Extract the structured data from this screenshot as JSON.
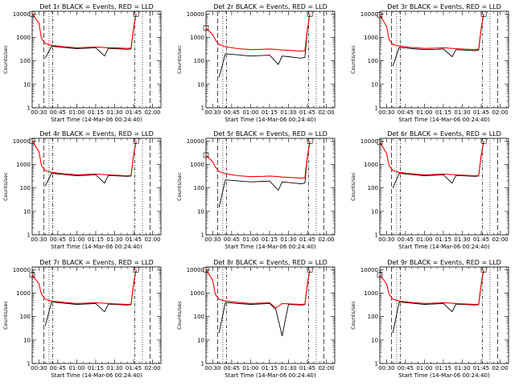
{
  "colors": {
    "events": "#000000",
    "lld": "#ff0000",
    "background": "#ffffff",
    "axes": "#000000"
  },
  "common": {
    "ylabel": "Counts/sec",
    "xlabel": "Start Time (14-Mar-06 00:24:40)",
    "ytick_labels": [
      "1",
      "10",
      "100",
      "1000",
      "10000"
    ],
    "xtick_labels": [
      "00:30",
      "00:45",
      "01:00",
      "01:15",
      "01:30",
      "01:45",
      "02:00"
    ]
  },
  "chart_data": [
    {
      "type": "line",
      "title": "Det 1r BLACK = Events, RED = LLD",
      "yscale": "log",
      "ylim": [
        1,
        13000
      ],
      "x": [
        "00:24:40",
        "00:30",
        "00:32",
        "00:35",
        "00:40",
        "00:50",
        "01:00",
        "01:10",
        "01:15",
        "01:22",
        "01:25",
        "01:30",
        "01:35",
        "01:40",
        "01:43",
        "01:45",
        "01:47"
      ],
      "series": [
        {
          "values": [
            10000,
            4000,
            900,
            550,
            460,
            400,
            360,
            380,
            390,
            370,
            360,
            360,
            350,
            340,
            350,
            2500,
            10000
          ]
        },
        {
          "values": [
            null,
            null,
            null,
            130,
            420,
            370,
            330,
            350,
            360,
            160,
            340,
            330,
            320,
            310,
            320,
            2400,
            10000
          ]
        }
      ],
      "vlines": [
        "00:34",
        "00:38",
        "00:41",
        "01:46",
        "01:52",
        "01:58"
      ]
    },
    {
      "type": "line",
      "title": "Det 2r BLACK = Events, RED = LLD",
      "yscale": "log",
      "ylim": [
        1,
        13000
      ],
      "x": [
        "00:24:40",
        "00:30",
        "00:32",
        "00:35",
        "00:40",
        "00:50",
        "01:00",
        "01:10",
        "01:15",
        "01:22",
        "01:25",
        "01:30",
        "01:35",
        "01:40",
        "01:43",
        "01:45",
        "01:47"
      ],
      "series": [
        {
          "values": [
            2500,
            1300,
            800,
            500,
            400,
            330,
            300,
            310,
            320,
            300,
            290,
            280,
            270,
            260,
            270,
            2200,
            10000
          ]
        },
        {
          "values": [
            null,
            null,
            null,
            20,
            200,
            180,
            160,
            170,
            175,
            70,
            160,
            150,
            140,
            130,
            140,
            2000,
            10000
          ]
        }
      ],
      "vlines": [
        "00:34",
        "00:38",
        "00:41",
        "01:46",
        "01:52",
        "01:58"
      ]
    },
    {
      "type": "line",
      "title": "Det 3r BLACK = Events, RED = LLD",
      "yscale": "log",
      "ylim": [
        1,
        13000
      ],
      "x": [
        "00:24:40",
        "00:30",
        "00:32",
        "00:35",
        "00:40",
        "00:50",
        "01:00",
        "01:10",
        "01:15",
        "01:22",
        "01:25",
        "01:30",
        "01:35",
        "01:40",
        "01:43",
        "01:45",
        "01:47"
      ],
      "series": [
        {
          "values": [
            9000,
            3000,
            800,
            500,
            430,
            370,
            340,
            350,
            360,
            340,
            330,
            320,
            310,
            300,
            320,
            2500,
            10000
          ]
        },
        {
          "values": [
            null,
            null,
            null,
            60,
            380,
            330,
            300,
            310,
            320,
            150,
            300,
            290,
            280,
            270,
            290,
            2400,
            10000
          ]
        }
      ],
      "vlines": [
        "00:34",
        "00:38",
        "00:41",
        "01:46",
        "01:52",
        "01:58"
      ]
    },
    {
      "type": "line",
      "title": "Det 4r BLACK = Events, RED = LLD",
      "yscale": "log",
      "ylim": [
        1,
        13000
      ],
      "x": [
        "00:24:40",
        "00:30",
        "00:32",
        "00:35",
        "00:40",
        "00:50",
        "01:00",
        "01:10",
        "01:15",
        "01:22",
        "01:25",
        "01:30",
        "01:35",
        "01:40",
        "01:43",
        "01:45",
        "01:47"
      ],
      "series": [
        {
          "values": [
            10000,
            3500,
            900,
            550,
            460,
            400,
            360,
            380,
            390,
            370,
            360,
            350,
            340,
            330,
            340,
            2500,
            10000
          ]
        },
        {
          "values": [
            null,
            null,
            null,
            120,
            420,
            370,
            330,
            350,
            360,
            160,
            340,
            330,
            320,
            310,
            320,
            2400,
            10000
          ]
        }
      ],
      "vlines": [
        "00:34",
        "00:38",
        "00:41",
        "01:46",
        "01:52",
        "01:58"
      ]
    },
    {
      "type": "line",
      "title": "Det 5r BLACK = Events, RED = LLD",
      "yscale": "log",
      "ylim": [
        1,
        13000
      ],
      "x": [
        "00:24:40",
        "00:30",
        "00:32",
        "00:35",
        "00:40",
        "00:50",
        "01:00",
        "01:10",
        "01:15",
        "01:22",
        "01:25",
        "01:30",
        "01:35",
        "01:40",
        "01:43",
        "01:45",
        "01:47"
      ],
      "series": [
        {
          "values": [
            2500,
            1300,
            800,
            500,
            400,
            330,
            300,
            310,
            320,
            300,
            290,
            280,
            270,
            260,
            270,
            2200,
            10000
          ]
        },
        {
          "values": [
            null,
            null,
            null,
            15,
            220,
            200,
            180,
            190,
            195,
            80,
            180,
            170,
            160,
            150,
            160,
            2000,
            10000
          ]
        }
      ],
      "vlines": [
        "00:34",
        "00:38",
        "00:41",
        "01:46",
        "01:52",
        "01:58"
      ]
    },
    {
      "type": "line",
      "title": "Det 6r BLACK = Events, RED = LLD",
      "yscale": "log",
      "ylim": [
        1,
        13000
      ],
      "x": [
        "00:24:40",
        "00:30",
        "00:32",
        "00:35",
        "00:40",
        "00:50",
        "01:00",
        "01:10",
        "01:15",
        "01:22",
        "01:25",
        "01:30",
        "01:35",
        "01:40",
        "01:43",
        "01:45",
        "01:47"
      ],
      "series": [
        {
          "values": [
            9000,
            3000,
            900,
            550,
            460,
            400,
            360,
            380,
            390,
            370,
            360,
            350,
            340,
            330,
            340,
            2500,
            10000
          ]
        },
        {
          "values": [
            null,
            null,
            null,
            100,
            420,
            370,
            330,
            350,
            360,
            160,
            340,
            330,
            320,
            310,
            320,
            2400,
            10000
          ]
        }
      ],
      "vlines": [
        "00:34",
        "00:38",
        "00:41",
        "01:46",
        "01:52",
        "01:58"
      ]
    },
    {
      "type": "line",
      "title": "Det 7r BLACK = Events, RED = LLD",
      "yscale": "log",
      "ylim": [
        1,
        13000
      ],
      "x": [
        "00:24:40",
        "00:30",
        "00:32",
        "00:35",
        "00:40",
        "00:50",
        "01:00",
        "01:10",
        "01:15",
        "01:22",
        "01:25",
        "01:30",
        "01:35",
        "01:40",
        "01:43",
        "01:45",
        "01:47"
      ],
      "series": [
        {
          "values": [
            6000,
            2500,
            900,
            550,
            460,
            400,
            360,
            380,
            390,
            370,
            360,
            350,
            340,
            330,
            340,
            2500,
            10000
          ]
        },
        {
          "values": [
            null,
            null,
            null,
            40,
            420,
            370,
            330,
            350,
            360,
            160,
            340,
            330,
            320,
            310,
            320,
            2400,
            10000
          ]
        }
      ],
      "vlines": [
        "00:34",
        "00:38",
        "00:41",
        "01:46",
        "01:52",
        "01:58"
      ]
    },
    {
      "type": "line",
      "title": "Det 8r BLACK = Events, RED = LLD",
      "yscale": "log",
      "ylim": [
        1,
        13000
      ],
      "x": [
        "00:24:40",
        "00:30",
        "00:32",
        "00:35",
        "00:40",
        "00:50",
        "01:00",
        "01:10",
        "01:15",
        "01:20",
        "01:25",
        "01:30",
        "01:35",
        "01:40",
        "01:43",
        "01:45",
        "01:47"
      ],
      "series": [
        {
          "values": [
            10000,
            3500,
            900,
            550,
            460,
            400,
            360,
            380,
            390,
            230,
            360,
            350,
            340,
            330,
            340,
            2500,
            10000
          ]
        },
        {
          "values": [
            null,
            null,
            null,
            20,
            400,
            360,
            330,
            350,
            360,
            200,
            15,
            330,
            320,
            310,
            320,
            2400,
            10000
          ]
        }
      ],
      "vlines": [
        "00:34",
        "00:38",
        "00:41",
        "01:46",
        "01:52",
        "01:58"
      ]
    },
    {
      "type": "line",
      "title": "Det 9r BLACK = Events, RED = LLD",
      "yscale": "log",
      "ylim": [
        1,
        13000
      ],
      "x": [
        "00:24:40",
        "00:30",
        "00:32",
        "00:35",
        "00:40",
        "00:50",
        "01:00",
        "01:10",
        "01:15",
        "01:22",
        "01:25",
        "01:30",
        "01:35",
        "01:40",
        "01:43",
        "01:45",
        "01:47"
      ],
      "series": [
        {
          "values": [
            6000,
            2500,
            900,
            550,
            460,
            400,
            360,
            380,
            390,
            370,
            360,
            350,
            340,
            330,
            340,
            2500,
            10000
          ]
        },
        {
          "values": [
            null,
            null,
            null,
            20,
            420,
            370,
            330,
            350,
            360,
            160,
            340,
            330,
            320,
            310,
            320,
            2400,
            10000
          ]
        }
      ],
      "vlines": [
        "00:34",
        "00:38",
        "00:41",
        "01:46",
        "01:52",
        "01:58"
      ]
    }
  ]
}
